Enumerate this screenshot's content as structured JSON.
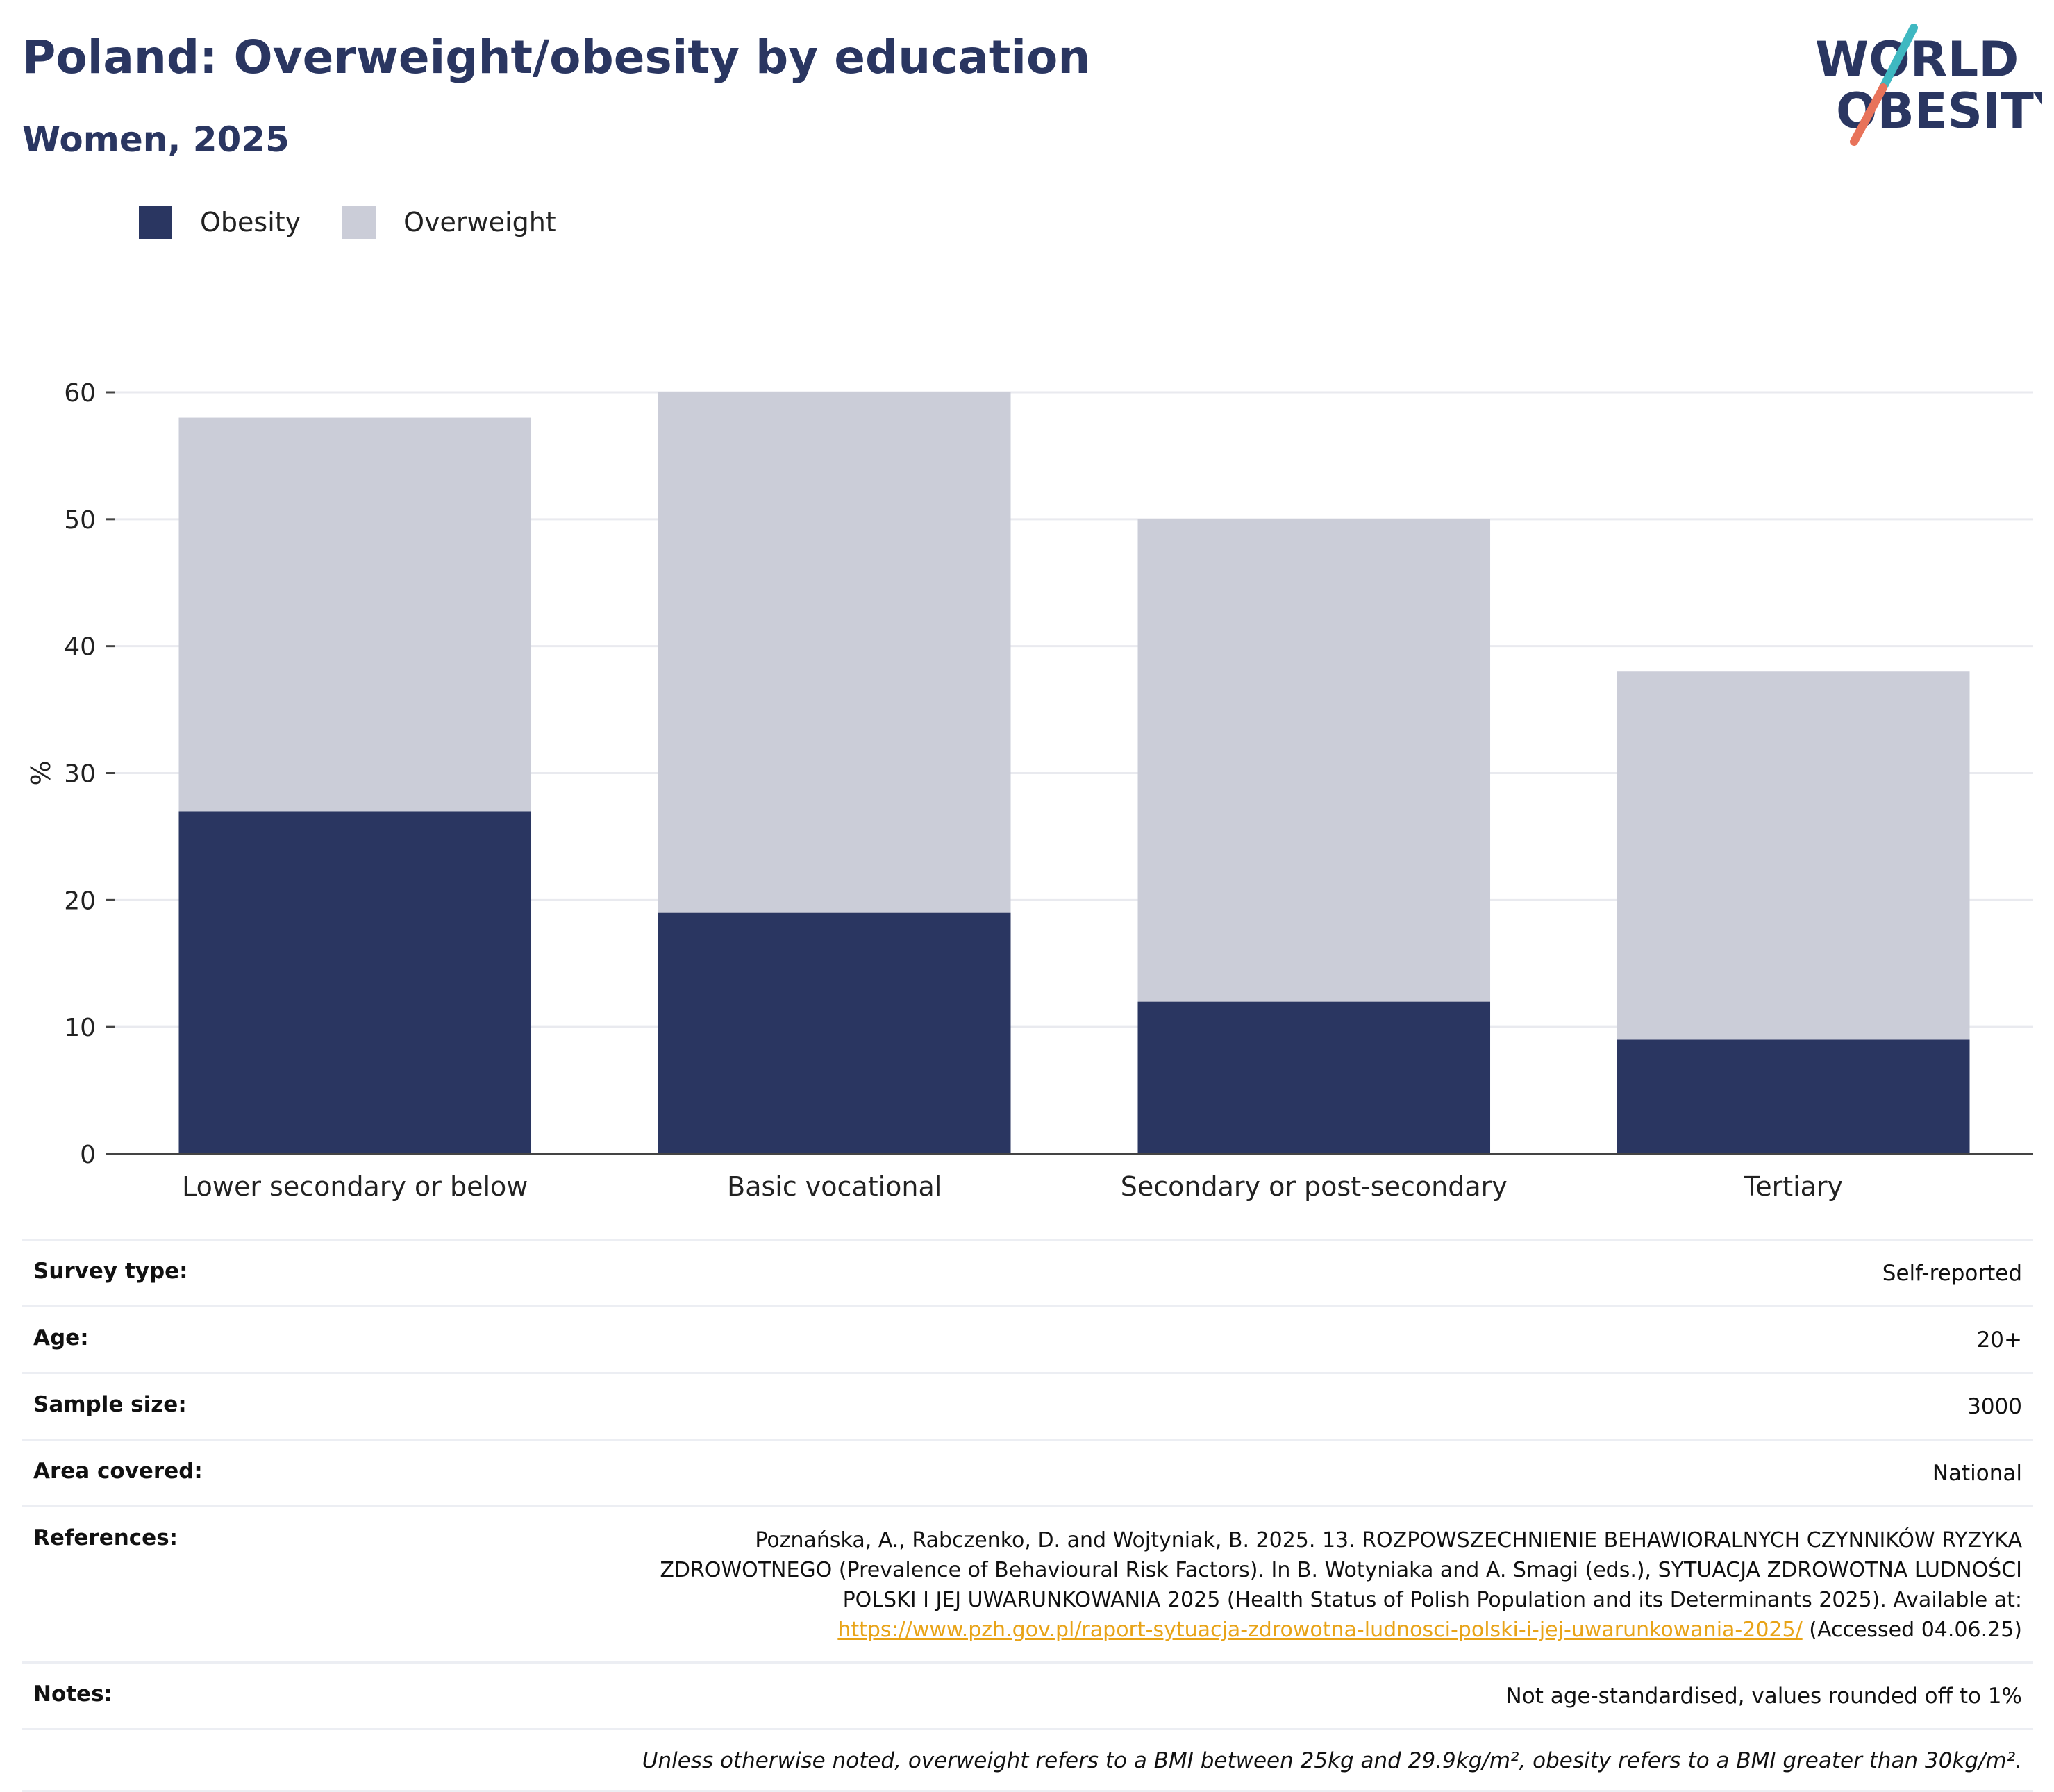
{
  "header": {
    "title": "Poland: Overweight/obesity by education",
    "subtitle": "Women, 2025"
  },
  "logo": {
    "line1": "WORLD",
    "line2": "OBESITY",
    "colors": {
      "navy": "#2a3661",
      "teal": "#3fb8c1",
      "coral": "#e8735a"
    }
  },
  "legend": {
    "items": [
      {
        "label": "Obesity",
        "color": "#2a3661"
      },
      {
        "label": "Overweight",
        "color": "#cbcdd8"
      }
    ]
  },
  "chart_data": {
    "type": "bar",
    "stacked": true,
    "categories": [
      "Lower secondary or below",
      "Basic vocational",
      "Secondary or post-secondary",
      "Tertiary"
    ],
    "series": [
      {
        "name": "Obesity",
        "values": [
          27,
          19,
          12,
          9
        ],
        "color": "#2a3661"
      },
      {
        "name": "Overweight",
        "values": [
          31,
          41,
          38,
          29
        ],
        "color": "#cbcdd8"
      }
    ],
    "ylabel": "%",
    "ylim": [
      0,
      60
    ],
    "yticks": [
      0,
      10,
      20,
      30,
      40,
      50,
      60
    ],
    "grid": true,
    "legend_position": "top-left"
  },
  "meta": {
    "rows": [
      {
        "key": "Survey type:",
        "value": "Self-reported"
      },
      {
        "key": "Age:",
        "value": "20+"
      },
      {
        "key": "Sample size:",
        "value": "3000"
      },
      {
        "key": "Area covered:",
        "value": "National"
      }
    ],
    "references": {
      "key": "References:",
      "line1": "Poznańska, A., Rabczenko, D. and Wojtyniak, B. 2025. 13. ROZPOWSZECHNIENIE BEHAWIORALNYCH CZYNNIKÓW RYZYKA",
      "line2": "ZDROWOTNEGO (Prevalence of Behavioural Risk Factors). In B. Wotyniaka and A. Smagi (eds.), SYTUACJA ZDROWOTNA LUDNOŚCI",
      "line3": "POLSKI I JEJ UWARUNKOWANIA 2025 (Health Status of Polish Population and its Determinants 2025). Available at:",
      "link": "https://www.pzh.gov.pl/raport-sytuacja-zdrowotna-ludnosci-polski-i-jej-uwarunkowania-2025/",
      "accessed": "(Accessed 04.06.25)"
    },
    "notes": {
      "key": "Notes:",
      "value": "Not age-standardised, values rounded off to 1%"
    },
    "footnote": "Unless otherwise noted, overweight refers to a BMI between 25kg and 29.9kg/m², obesity refers to a BMI greater than 30kg/m²."
  }
}
